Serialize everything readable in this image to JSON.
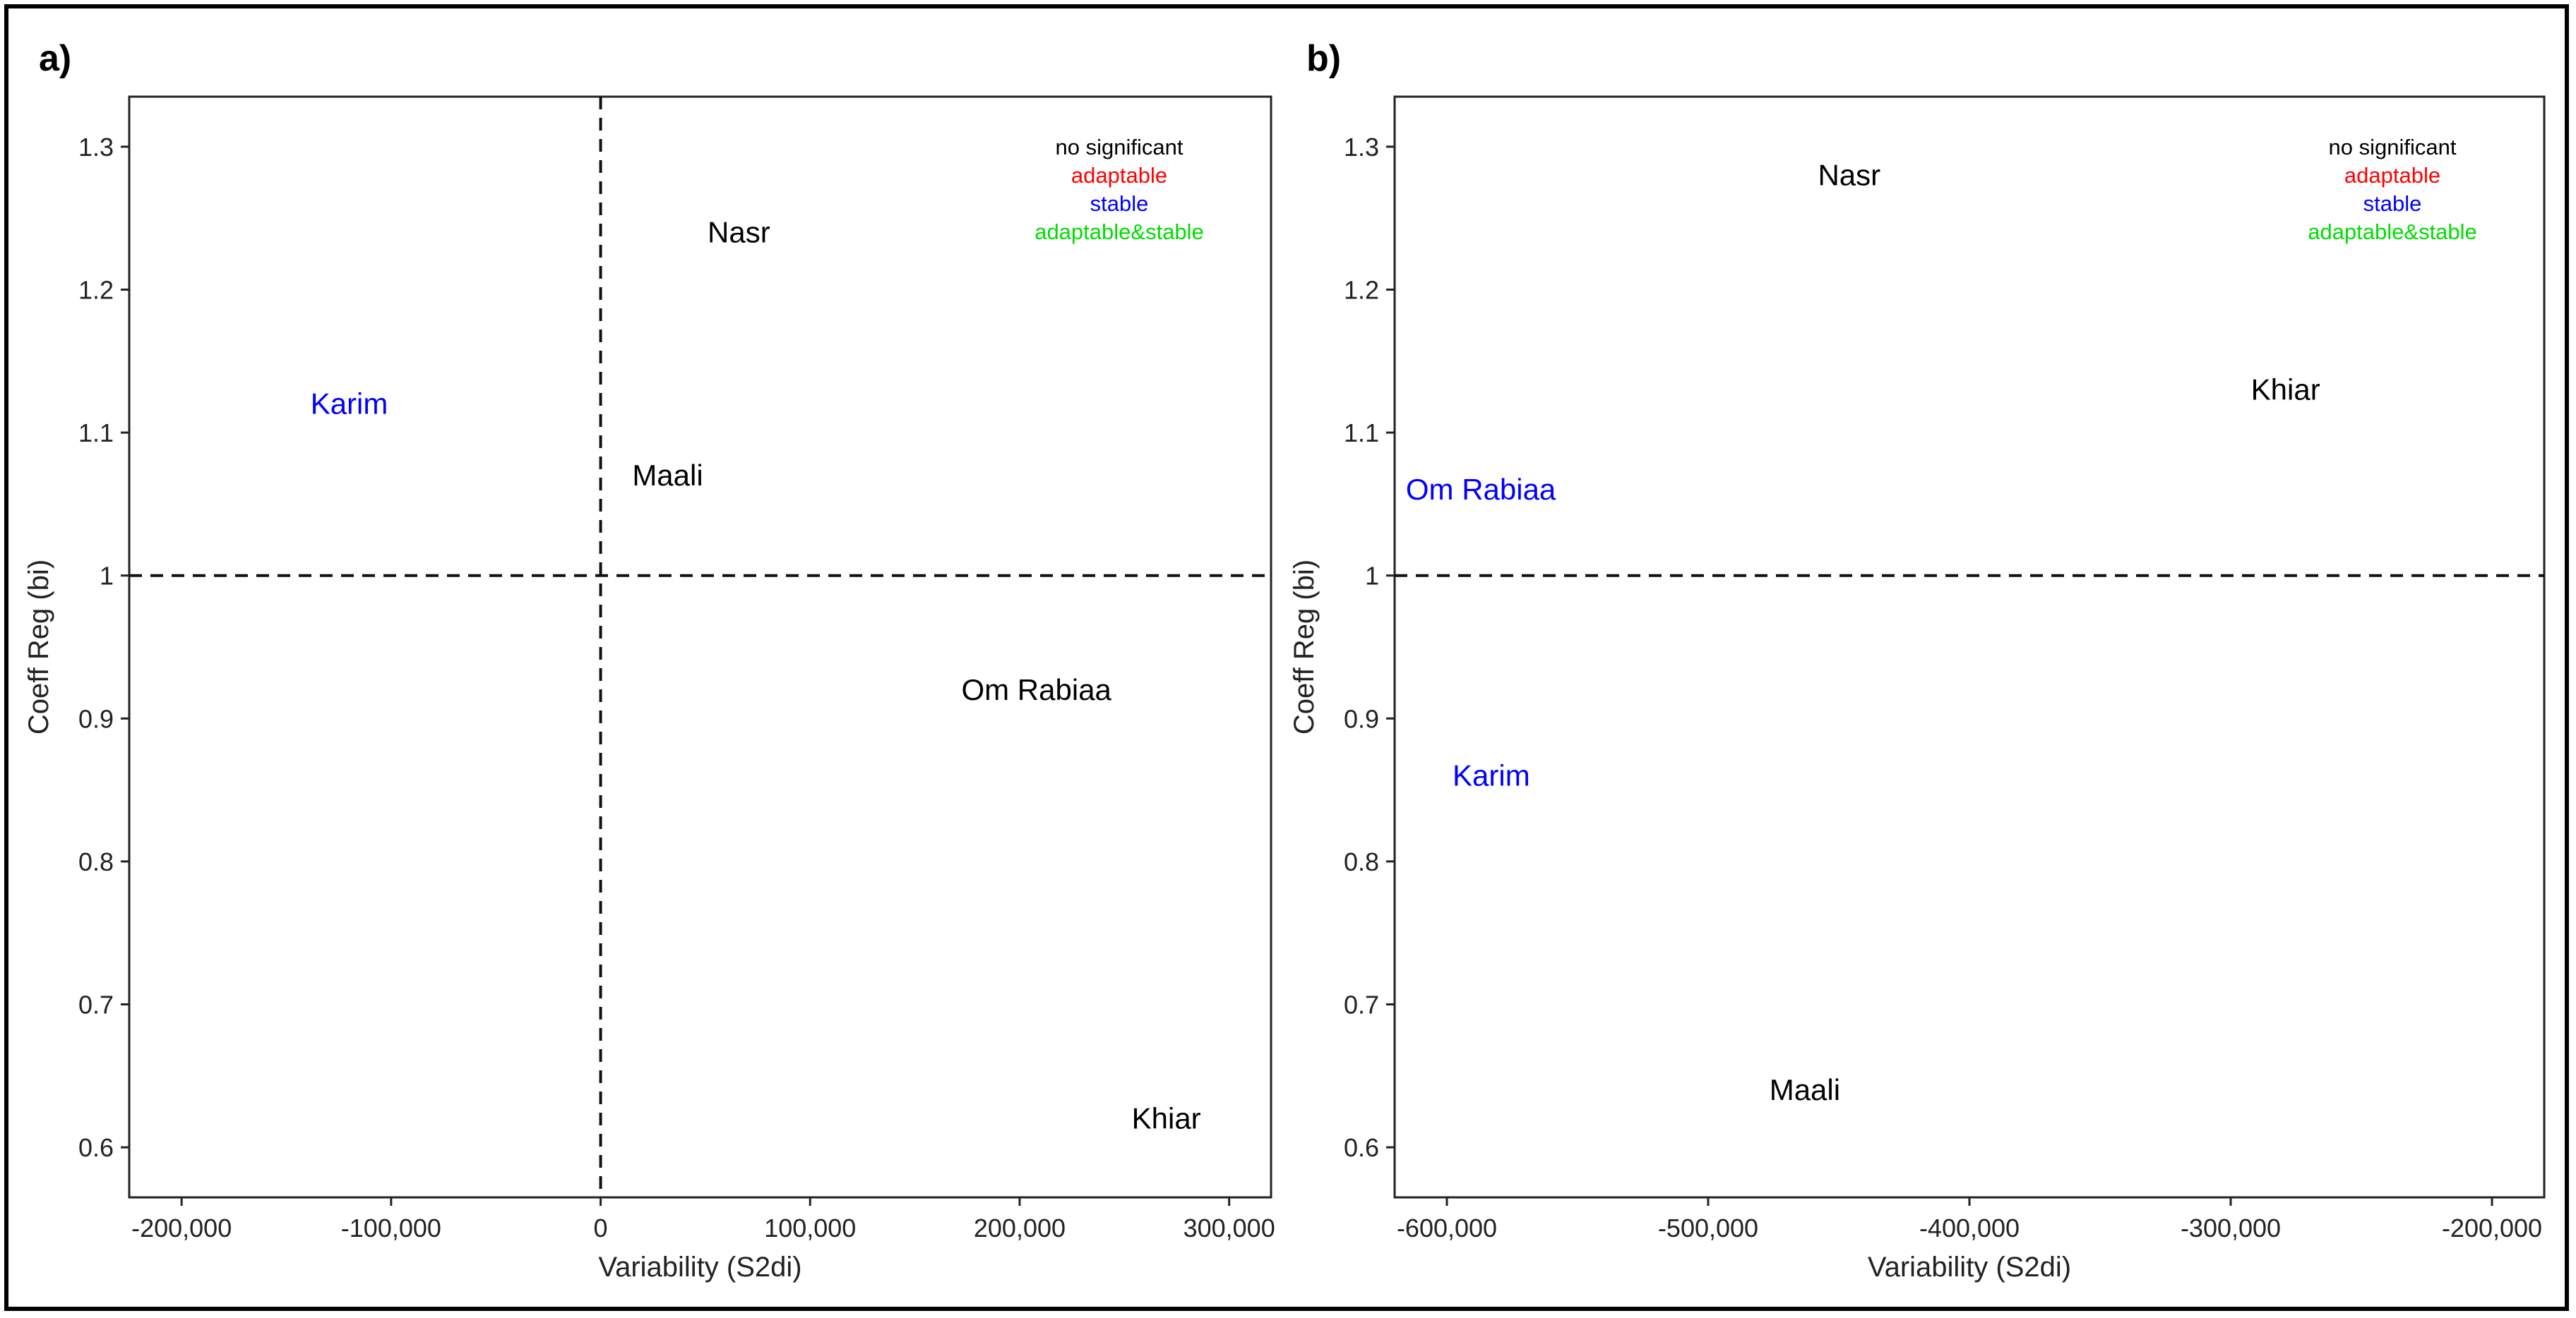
{
  "colors": {
    "no_significant": "#000000",
    "adaptable": "#ff0000",
    "stable": "#0000ff",
    "adaptable_stable": "#00dd00"
  },
  "chart_data": [
    {
      "type": "scatter",
      "panel_label": "a)",
      "xlabel": "Variability (S2di)",
      "ylabel": "Coeff Reg (bi)",
      "xlim": [
        -225000,
        320000
      ],
      "ylim": [
        0.565,
        1.335
      ],
      "x_ticks": [
        -200000,
        -100000,
        0,
        100000,
        200000,
        300000
      ],
      "x_tick_labels": [
        "-200,000",
        "-100,000",
        "0",
        "100,000",
        "200,000",
        "300,000"
      ],
      "y_ticks": [
        0.6,
        0.7,
        0.8,
        0.9,
        1.0,
        1.1,
        1.2,
        1.3
      ],
      "y_tick_labels": [
        "0.6",
        "0.7",
        "0.8",
        "0.9",
        "1",
        "1.1",
        "1.2",
        "1.3"
      ],
      "hline": 1.0,
      "vline": 0,
      "grid": false,
      "legend": {
        "placement": "top-right",
        "entries": [
          {
            "label": "no significant",
            "category": "no_significant"
          },
          {
            "label": "adaptable",
            "category": "adaptable"
          },
          {
            "label": "stable",
            "category": "stable"
          },
          {
            "label": "adaptable&stable",
            "category": "adaptable_stable"
          }
        ]
      },
      "points": [
        {
          "name": "Nasr",
          "x": 66000,
          "y": 1.24,
          "category": "no_significant"
        },
        {
          "name": "Karim",
          "x": -120000,
          "y": 1.12,
          "category": "stable"
        },
        {
          "name": "Maali",
          "x": 32000,
          "y": 1.07,
          "category": "no_significant"
        },
        {
          "name": "Om Rabiaa",
          "x": 208000,
          "y": 0.92,
          "category": "no_significant"
        },
        {
          "name": "Khiar",
          "x": 270000,
          "y": 0.62,
          "category": "no_significant"
        }
      ]
    },
    {
      "type": "scatter",
      "panel_label": "b)",
      "xlabel": "Variability (S2di)",
      "ylabel": "Coeff Reg (bi)",
      "xlim": [
        -620000,
        -180000
      ],
      "ylim": [
        0.565,
        1.335
      ],
      "x_ticks": [
        -600000,
        -500000,
        -400000,
        -300000,
        -200000
      ],
      "x_tick_labels": [
        "-600,000",
        "-500,000",
        "-400,000",
        "-300,000",
        "-200,000"
      ],
      "y_ticks": [
        0.6,
        0.7,
        0.8,
        0.9,
        1.0,
        1.1,
        1.2,
        1.3
      ],
      "y_tick_labels": [
        "0.6",
        "0.7",
        "0.8",
        "0.9",
        "1",
        "1.1",
        "1.2",
        "1.3"
      ],
      "hline": 1.0,
      "vline": null,
      "grid": false,
      "legend": {
        "placement": "top-right",
        "entries": [
          {
            "label": "no significant",
            "category": "no_significant"
          },
          {
            "label": "adaptable",
            "category": "adaptable"
          },
          {
            "label": "stable",
            "category": "stable"
          },
          {
            "label": "adaptable&stable",
            "category": "adaptable_stable"
          }
        ]
      },
      "points": [
        {
          "name": "Nasr",
          "x": -446000,
          "y": 1.28,
          "category": "no_significant"
        },
        {
          "name": "Khiar",
          "x": -279000,
          "y": 1.13,
          "category": "no_significant"
        },
        {
          "name": "Om Rabiaa",
          "x": -587000,
          "y": 1.06,
          "category": "stable"
        },
        {
          "name": "Karim",
          "x": -583000,
          "y": 0.86,
          "category": "stable"
        },
        {
          "name": "Maali",
          "x": -463000,
          "y": 0.64,
          "category": "no_significant"
        }
      ]
    }
  ]
}
